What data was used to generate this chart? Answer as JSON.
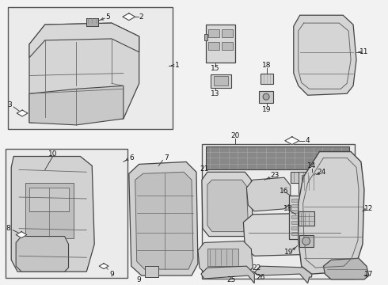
{
  "bg_color": "#f2f2f2",
  "lc": "#444444",
  "lc2": "#666666",
  "white": "#ffffff",
  "label_fs": 6.5,
  "fig_w": 4.9,
  "fig_h": 3.6,
  "dpi": 100
}
